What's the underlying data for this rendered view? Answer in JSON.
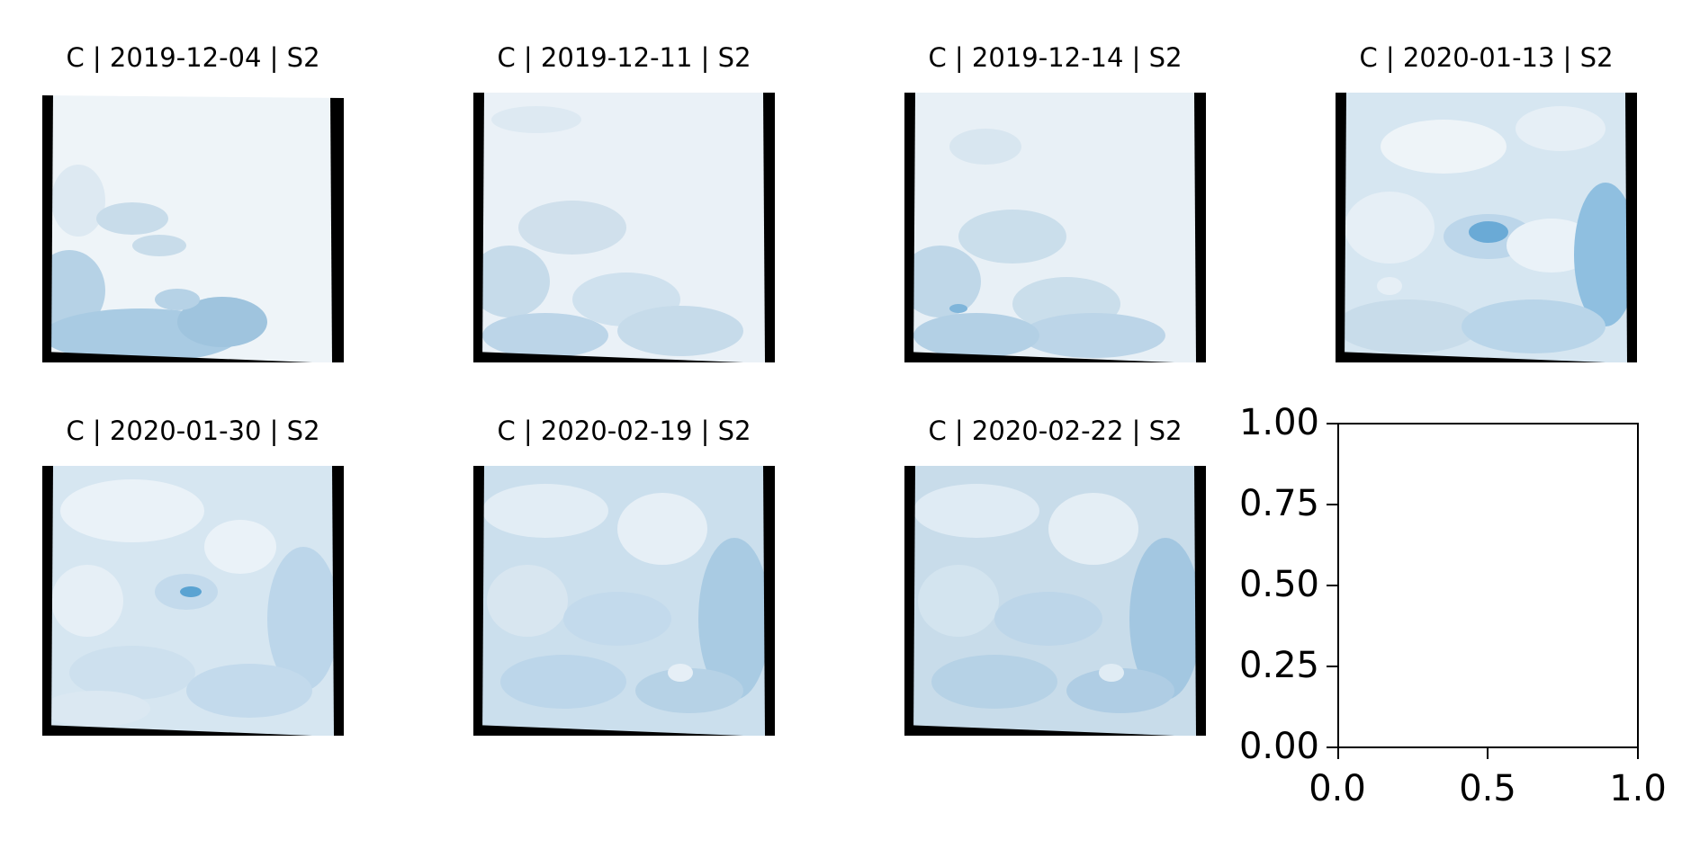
{
  "panels": [
    {
      "title": "C | 2019-12-04 | S2"
    },
    {
      "title": "C | 2019-12-11 | S2"
    },
    {
      "title": "C | 2019-12-14 | S2"
    },
    {
      "title": "C | 2020-01-13 | S2"
    },
    {
      "title": "C | 2020-01-30 | S2"
    },
    {
      "title": "C | 2020-02-19 | S2"
    },
    {
      "title": "C | 2020-02-22 | S2"
    }
  ],
  "empty_axes": {
    "yticks": [
      "1.00",
      "0.75",
      "0.50",
      "0.25",
      "0.00"
    ],
    "xticks": [
      "0.0",
      "0.5",
      "1.0"
    ]
  },
  "colors": {
    "snow": "#eef4f8",
    "ice_light": "#cfe1ee",
    "ice_blue": "#a9cbe3",
    "melt_blue": "#5aa3d2",
    "nodata": "#000000"
  }
}
